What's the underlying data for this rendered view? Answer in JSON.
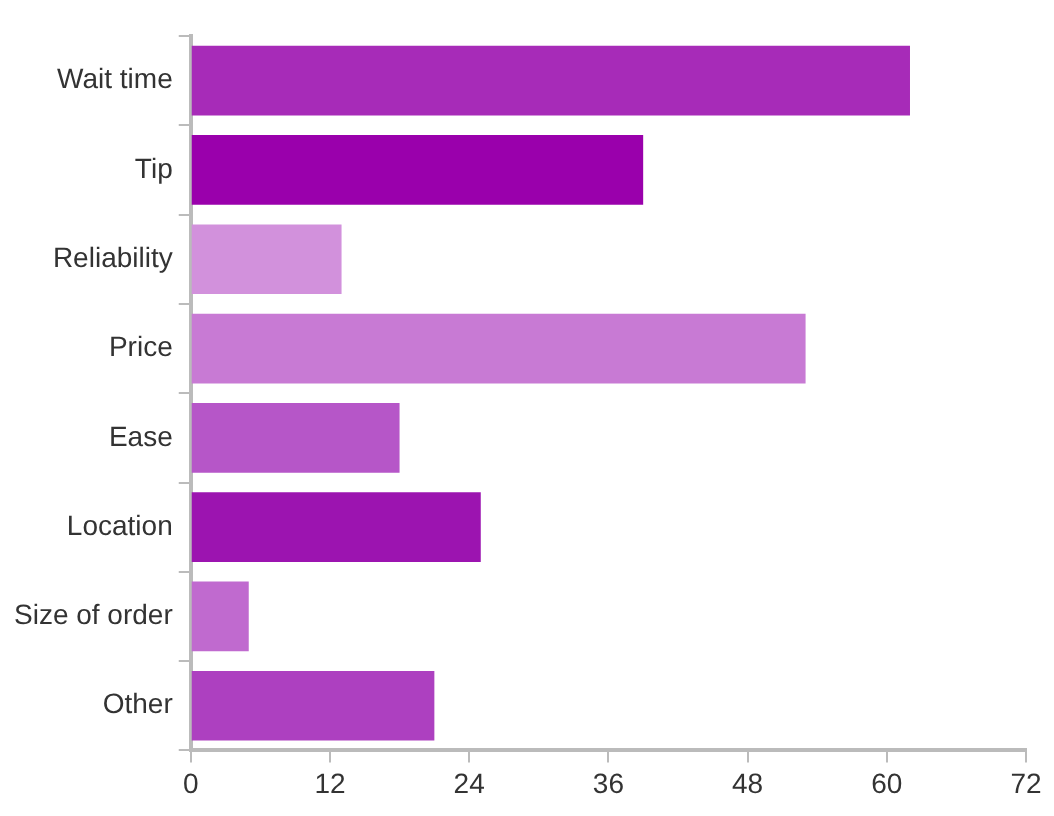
{
  "chart_data": {
    "type": "bar",
    "orientation": "horizontal",
    "categories": [
      "Wait time",
      "Tip",
      "Reliability",
      "Price",
      "Ease",
      "Location",
      "Size of order",
      "Other"
    ],
    "values": [
      62,
      39,
      13,
      53,
      18,
      25,
      5,
      21
    ],
    "colors": [
      "#a72bb8",
      "#9a00ac",
      "#d291dc",
      "#c87ad4",
      "#b656c8",
      "#9c14b0",
      "#c06acf",
      "#ad40c0"
    ],
    "xlim": [
      0,
      72
    ],
    "xticks": [
      0,
      12,
      24,
      36,
      48,
      60,
      72
    ],
    "grid": false,
    "legend": false
  }
}
